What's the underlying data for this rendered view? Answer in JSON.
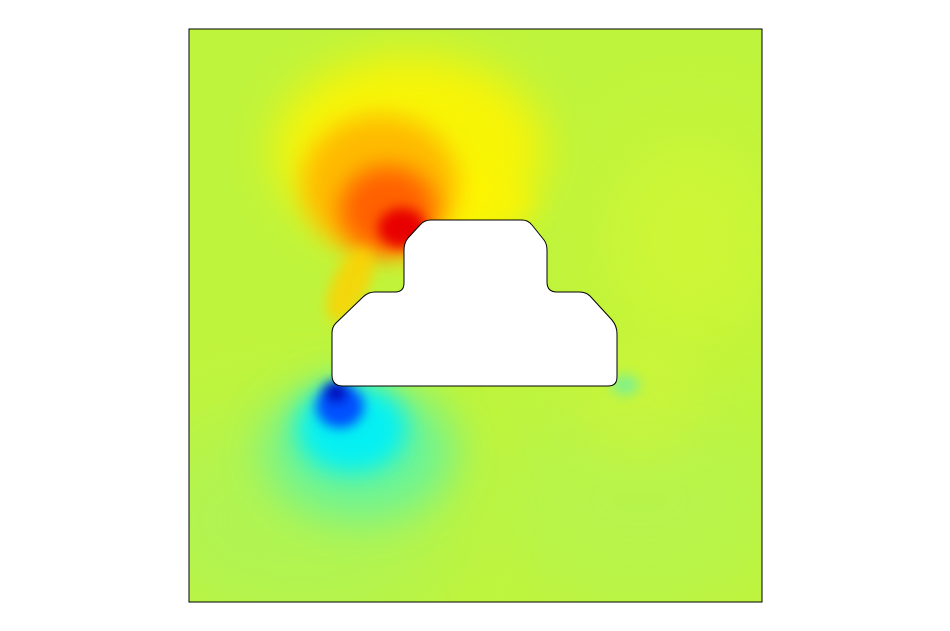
{
  "figure": {
    "kind": "2D field colormap plot",
    "colormap": "jet",
    "background_color": "#ffffff",
    "frame_color": "#000000",
    "cutout_color": "#ffffff",
    "field_base_color": "#bff43c",
    "colorbar_shown": false,
    "axes_shown": false,
    "title_shown": false
  }
}
